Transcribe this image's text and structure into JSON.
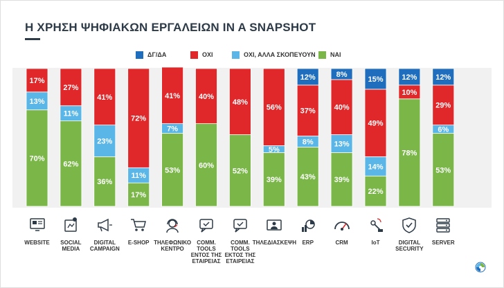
{
  "title": "Η ΧΡΗΣΗ ΨΗΦΙΑΚΩΝ ΕΡΓΑΛΕΙΩΝ IN A SNAPSHOT",
  "legend": [
    {
      "label": "ΔΓ/ΔΑ",
      "color": "#1f6ebd"
    },
    {
      "label": "ΟΧΙ",
      "color": "#e0272a"
    },
    {
      "label": "ΟΧΙ, ΑΛΛΑ ΣΚΟΠΕΥΟΥΝ",
      "color": "#5ab6e6"
    },
    {
      "label": "ΝΑΙ",
      "color": "#7ab648"
    }
  ],
  "icons": [
    "monitor-icon",
    "social-media-icon",
    "megaphone-icon",
    "cart-icon",
    "headset-icon",
    "chat-check-icon",
    "chat-check-icon",
    "video-conference-icon",
    "erp-chart-icon",
    "gauge-icon",
    "iot-icon",
    "shield-check-icon",
    "server-icon"
  ],
  "chart_data": {
    "type": "bar",
    "stacked": true,
    "percent": true,
    "ylim": [
      0,
      100
    ],
    "categories": [
      "WEBSITE",
      "SOCIAL\nMEDIA",
      "DIGITAL\nCAMPAIGN",
      "E-SHOP",
      "ΤΗΛΕΦΩΝΙΚΟ\nΚΕΝΤΡΟ",
      "COMM.\nTOOLS\nΕΝΤΟΣ ΤΗΣ\nΕΤΑΙΡΕΙΑΣ",
      "COMM.\nTOOLS\nΕΚΤΟΣ ΤΗΣ\nΕΤΑΙΡΕΙΑΣ",
      "ΤΗΛΕΔΙΑΣΚΕΨΗ",
      "ERP",
      "CRM",
      "IoT",
      "DIGITAL\nSECURITY",
      "SERVER"
    ],
    "series": [
      {
        "name": "ΝΑΙ",
        "color": "#7ab648",
        "values": [
          70,
          62,
          36,
          17,
          53,
          60,
          52,
          39,
          43,
          39,
          22,
          78,
          53
        ]
      },
      {
        "name": "ΟΧΙ, ΑΛΛΑ ΣΚΟΠΕΥΟΥΝ",
        "color": "#5ab6e6",
        "values": [
          13,
          11,
          23,
          11,
          7,
          0,
          0,
          5,
          8,
          13,
          14,
          0,
          6
        ]
      },
      {
        "name": "ΟΧΙ",
        "color": "#e0272a",
        "values": [
          17,
          27,
          41,
          72,
          41,
          40,
          48,
          56,
          37,
          40,
          49,
          10,
          29
        ]
      },
      {
        "name": "ΔΓ/ΔΑ",
        "color": "#1f6ebd",
        "values": [
          0,
          0,
          0,
          0,
          0,
          0,
          0,
          0,
          12,
          8,
          15,
          12,
          12
        ]
      }
    ]
  }
}
